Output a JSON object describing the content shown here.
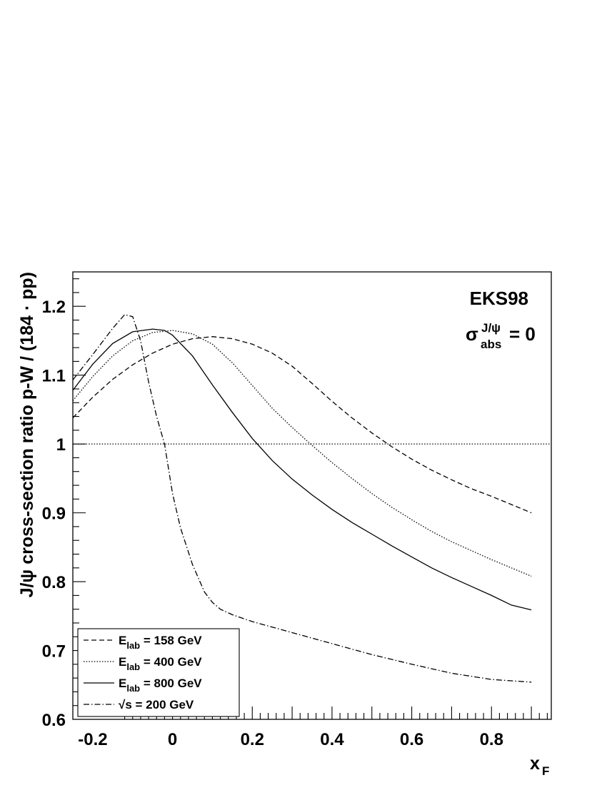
{
  "chart_data": {
    "type": "line",
    "ylabel": "J/ψ cross-section ratio p-W / (184 · pp)",
    "xlabel": {
      "main": "x",
      "sub": "F"
    },
    "xlim": [
      -0.25,
      0.95
    ],
    "ylim": [
      0.6,
      1.25
    ],
    "x_ticks": [
      -0.2,
      0,
      0.2,
      0.4,
      0.6,
      0.8
    ],
    "x_tick_labels": [
      "-0.2",
      "0",
      "0.2",
      "0.4",
      "0.6",
      "0.8"
    ],
    "y_ticks": [
      0.6,
      0.7,
      0.8,
      0.9,
      1.0,
      1.1,
      1.2
    ],
    "y_tick_labels": [
      "0.6",
      "0.7",
      "0.8",
      "0.9",
      "1",
      "1.1",
      "1.2"
    ],
    "reference_line": {
      "y": 1.0,
      "style": "dotted"
    },
    "annotations": {
      "model": "EKS98",
      "sigma_symbol": "σ",
      "sigma_sup": "J/ψ",
      "sigma_sub": "abs",
      "sigma_value": "= 0"
    },
    "legend_position": "bottom-left",
    "series": [
      {
        "name": "E_lab = 158 GeV",
        "legend": {
          "main": "E",
          "sub": "lab",
          "rest": " = 158 GeV"
        },
        "style": "dashed",
        "x": [
          -0.25,
          -0.2,
          -0.15,
          -0.1,
          -0.05,
          0,
          0.05,
          0.1,
          0.15,
          0.2,
          0.25,
          0.3,
          0.35,
          0.4,
          0.45,
          0.5,
          0.55,
          0.6,
          0.65,
          0.7,
          0.75,
          0.8,
          0.85,
          0.9
        ],
        "y": [
          1.038,
          1.068,
          1.094,
          1.115,
          1.132,
          1.145,
          1.153,
          1.156,
          1.153,
          1.145,
          1.132,
          1.113,
          1.088,
          1.062,
          1.038,
          1.016,
          0.996,
          0.978,
          0.962,
          0.948,
          0.935,
          0.924,
          0.912,
          0.9
        ]
      },
      {
        "name": "E_lab = 400 GeV",
        "legend": {
          "main": "E",
          "sub": "lab",
          "rest": " = 400 GeV"
        },
        "style": "dotted",
        "x": [
          -0.25,
          -0.2,
          -0.15,
          -0.1,
          -0.05,
          0,
          0.05,
          0.1,
          0.15,
          0.2,
          0.25,
          0.3,
          0.35,
          0.4,
          0.45,
          0.5,
          0.55,
          0.6,
          0.65,
          0.7,
          0.75,
          0.8,
          0.85,
          0.9
        ],
        "y": [
          1.063,
          1.098,
          1.128,
          1.15,
          1.162,
          1.165,
          1.16,
          1.145,
          1.118,
          1.085,
          1.052,
          1.024,
          0.998,
          0.973,
          0.95,
          0.928,
          0.908,
          0.89,
          0.873,
          0.858,
          0.845,
          0.832,
          0.82,
          0.808
        ]
      },
      {
        "name": "E_lab = 800 GeV",
        "legend": {
          "main": "E",
          "sub": "lab",
          "rest": " = 800 GeV"
        },
        "style": "solid",
        "x": [
          -0.25,
          -0.2,
          -0.15,
          -0.1,
          -0.05,
          -0.02,
          0,
          0.05,
          0.1,
          0.15,
          0.2,
          0.25,
          0.3,
          0.35,
          0.4,
          0.45,
          0.5,
          0.55,
          0.6,
          0.65,
          0.7,
          0.75,
          0.8,
          0.85,
          0.9
        ],
        "y": [
          1.078,
          1.116,
          1.146,
          1.163,
          1.167,
          1.165,
          1.158,
          1.128,
          1.086,
          1.046,
          1.008,
          0.976,
          0.949,
          0.926,
          0.905,
          0.886,
          0.869,
          0.852,
          0.836,
          0.82,
          0.806,
          0.793,
          0.78,
          0.766,
          0.759
        ]
      },
      {
        "name": "√s = 200 GeV",
        "legend": {
          "main": "√s",
          "sub": "",
          "rest": " = 200 GeV"
        },
        "style": "dashdot",
        "x": [
          -0.25,
          -0.2,
          -0.15,
          -0.12,
          -0.1,
          -0.08,
          -0.06,
          -0.04,
          -0.02,
          0,
          0.02,
          0.05,
          0.08,
          0.1,
          0.12,
          0.15,
          0.2,
          0.3,
          0.4,
          0.5,
          0.6,
          0.7,
          0.8,
          0.9
        ],
        "y": [
          1.093,
          1.13,
          1.168,
          1.188,
          1.185,
          1.15,
          1.09,
          1.04,
          1.0,
          0.928,
          0.878,
          0.825,
          0.785,
          0.77,
          0.76,
          0.752,
          0.742,
          0.726,
          0.71,
          0.694,
          0.68,
          0.667,
          0.658,
          0.654
        ]
      }
    ]
  }
}
